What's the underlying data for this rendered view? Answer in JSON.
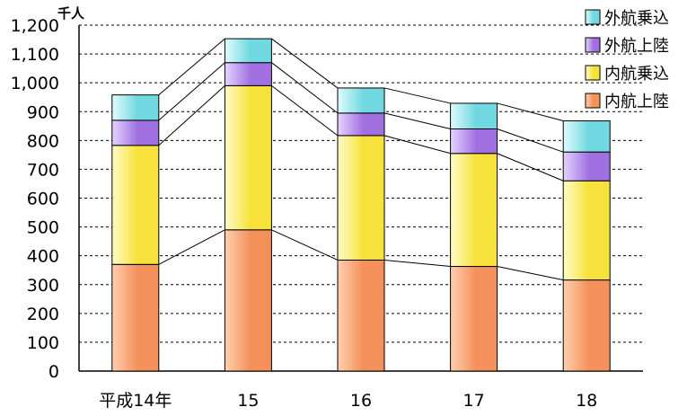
{
  "chart_data": {
    "type": "bar",
    "stacked": true,
    "unit_label": "千人",
    "categories": [
      "平成14年",
      "15",
      "16",
      "17",
      "18"
    ],
    "series": [
      {
        "name": "内航上陸",
        "values": [
          370,
          490,
          385,
          363,
          316
        ],
        "color": "#f4905a",
        "color_light": "#ffd0b0"
      },
      {
        "name": "内航乗込",
        "values": [
          413,
          500,
          432,
          392,
          344
        ],
        "color": "#f6e23a",
        "color_light": "#fffbc8"
      },
      {
        "name": "外航上陸",
        "values": [
          87,
          80,
          78,
          85,
          100
        ],
        "color": "#a070e0",
        "color_light": "#e4d4ff"
      },
      {
        "name": "外航乗込",
        "values": [
          88,
          83,
          87,
          89,
          108
        ],
        "color": "#70d8e0",
        "color_light": "#e0fbfd"
      }
    ],
    "ylim": [
      0,
      1200
    ],
    "yticks": [
      "0",
      "100",
      "200",
      "300",
      "400",
      "500",
      "600",
      "700",
      "800",
      "900",
      "1,000",
      "1,100",
      "1,200"
    ],
    "grid": true,
    "legend_position": "top-right",
    "legend_order": [
      "外航乗込",
      "外航上陸",
      "内航乗込",
      "内航上陸"
    ]
  }
}
